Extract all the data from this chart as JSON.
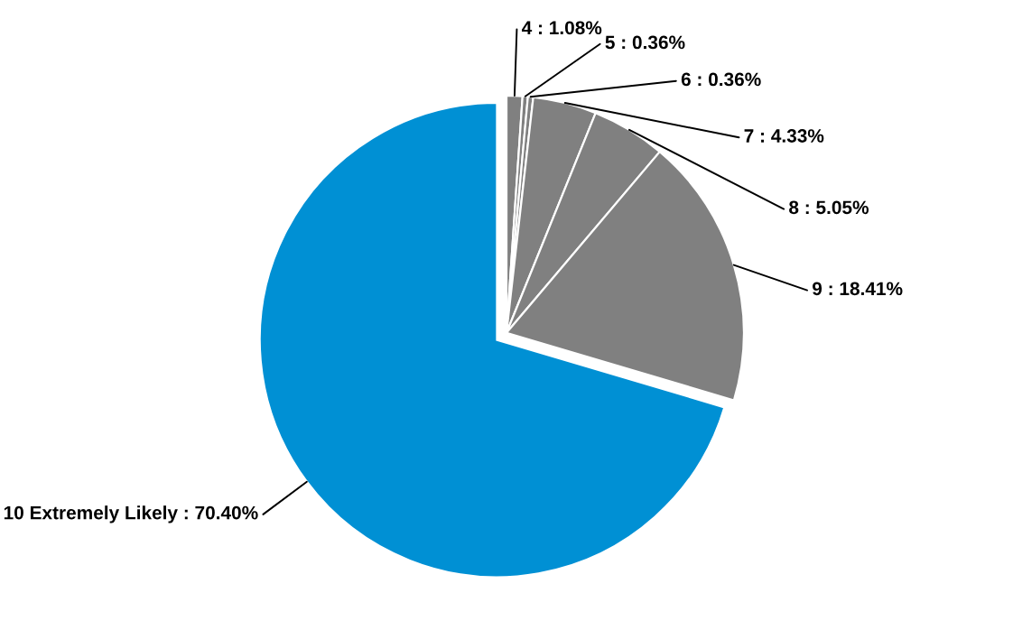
{
  "chart_data": {
    "type": "pie",
    "categories": [
      "4",
      "5",
      "6",
      "7",
      "8",
      "9",
      "10 Extremely Likely"
    ],
    "values": [
      1.08,
      0.36,
      0.36,
      4.33,
      5.05,
      18.41,
      70.4
    ],
    "value_labels": [
      ": 1.08%",
      ": 0.36%",
      ": 0.36%",
      ": 4.33%",
      ": 5.05%",
      ": 18.41%",
      ": 70.40%"
    ],
    "colors": [
      "#808080",
      "#808080",
      "#808080",
      "#808080",
      "#808080",
      "#808080",
      "#0090d4"
    ]
  }
}
